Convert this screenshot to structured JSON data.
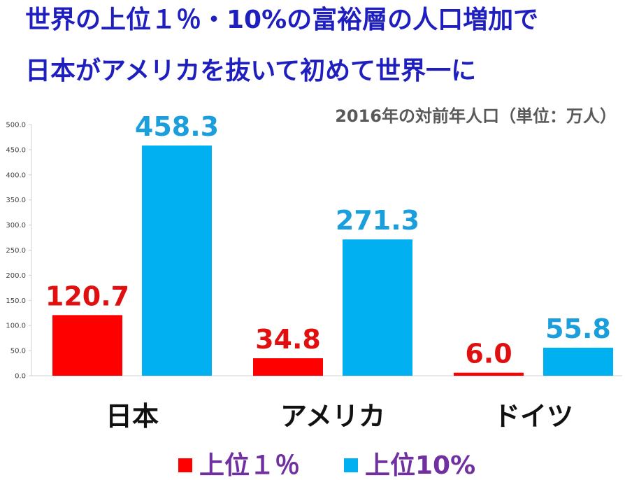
{
  "chart_data": {
    "type": "bar",
    "title": "世界の上位１％・10%の富裕層の人口増加で",
    "title_line2": "日本がアメリカを抜いて初めて世界一に",
    "subtitle": "2016年の対前年人口（単位：万人）",
    "categories": [
      "日本",
      "アメリカ",
      "ドイツ"
    ],
    "series": [
      {
        "name": "上位１％",
        "color": "#ff0000",
        "label_color": "#e01010",
        "values": [
          120.7,
          34.8,
          6.0
        ]
      },
      {
        "name": "上位10%",
        "color": "#00b0f0",
        "label_color": "#1a9fdc",
        "values": [
          458.3,
          271.3,
          55.8
        ]
      }
    ],
    "ylim": [
      0,
      500
    ],
    "yticks": [
      "0.0",
      "50.0",
      "100.0",
      "150.0",
      "200.0",
      "250.0",
      "300.0",
      "350.0",
      "400.0",
      "450.0",
      "500.0"
    ],
    "value_labels": [
      [
        "120.7",
        "34.8",
        "6.0"
      ],
      [
        "458.3",
        "271.3",
        "55.8"
      ]
    ],
    "grid": false,
    "legend_position": "bottom"
  }
}
